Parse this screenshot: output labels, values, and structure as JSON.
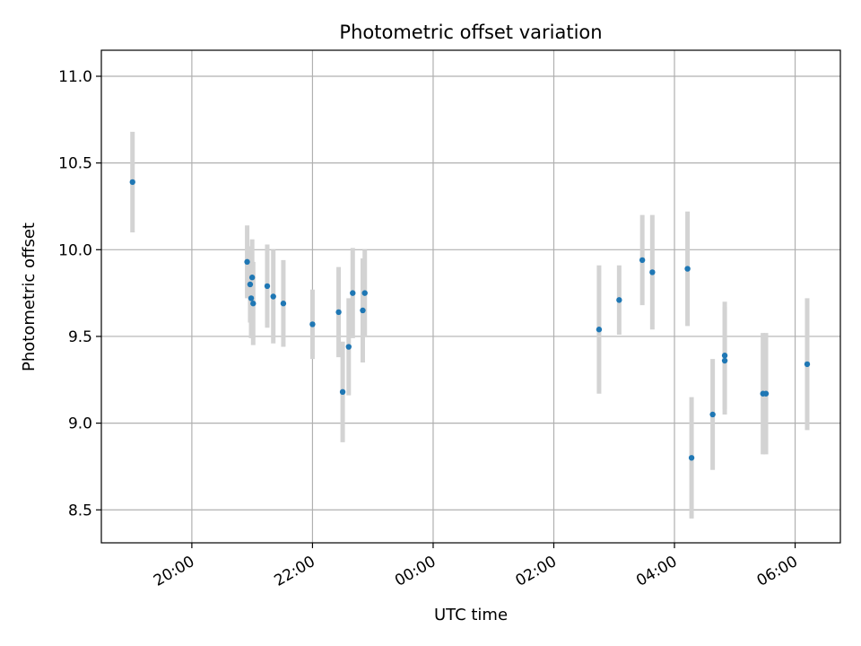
{
  "chart_data": {
    "type": "scatter",
    "title": "Photometric offset variation",
    "xlabel": "UTC time",
    "ylabel": "Photometric offset",
    "x_axis_type": "time",
    "xlim": [
      "18:30",
      "06:45"
    ],
    "ylim": [
      8.31,
      11.15
    ],
    "grid": true,
    "x_ticks": [
      "20:00",
      "22:00",
      "00:00",
      "02:00",
      "04:00",
      "06:00"
    ],
    "y_ticks": [
      "8.5",
      "9.0",
      "9.5",
      "10.0",
      "10.5",
      "11.0"
    ],
    "marker_color": "#1f77b4",
    "errorbar_color": "#d3d3d3",
    "points": [
      {
        "x": "19:01",
        "y": 10.39,
        "yerr": 0.29
      },
      {
        "x": "20:55",
        "y": 9.93,
        "yerr": 0.21
      },
      {
        "x": "20:58",
        "y": 9.8,
        "yerr": 0.22
      },
      {
        "x": "20:59",
        "y": 9.72,
        "yerr": 0.23
      },
      {
        "x": "21:00",
        "y": 9.84,
        "yerr": 0.22
      },
      {
        "x": "21:01",
        "y": 9.69,
        "yerr": 0.24
      },
      {
        "x": "21:15",
        "y": 9.79,
        "yerr": 0.24
      },
      {
        "x": "21:21",
        "y": 9.73,
        "yerr": 0.27
      },
      {
        "x": "21:31",
        "y": 9.69,
        "yerr": 0.25
      },
      {
        "x": "22:00",
        "y": 9.57,
        "yerr": 0.2
      },
      {
        "x": "22:26",
        "y": 9.64,
        "yerr": 0.26
      },
      {
        "x": "22:30",
        "y": 9.18,
        "yerr": 0.29
      },
      {
        "x": "22:36",
        "y": 9.44,
        "yerr": 0.28
      },
      {
        "x": "22:40",
        "y": 9.75,
        "yerr": 0.26
      },
      {
        "x": "22:50",
        "y": 9.65,
        "yerr": 0.3
      },
      {
        "x": "22:52",
        "y": 9.75,
        "yerr": 0.25
      },
      {
        "x": "02:45",
        "y": 9.54,
        "yerr": 0.37
      },
      {
        "x": "03:05",
        "y": 9.71,
        "yerr": 0.2
      },
      {
        "x": "03:28",
        "y": 9.94,
        "yerr": 0.26
      },
      {
        "x": "03:38",
        "y": 9.87,
        "yerr": 0.33
      },
      {
        "x": "04:13",
        "y": 9.89,
        "yerr": 0.33
      },
      {
        "x": "04:17",
        "y": 8.8,
        "yerr": 0.35
      },
      {
        "x": "04:38",
        "y": 9.05,
        "yerr": 0.32
      },
      {
        "x": "04:50",
        "y": 9.39,
        "yerr": 0.31
      },
      {
        "x": "04:50",
        "y": 9.36,
        "yerr": 0.31
      },
      {
        "x": "05:28",
        "y": 9.17,
        "yerr": 0.35
      },
      {
        "x": "05:31",
        "y": 9.17,
        "yerr": 0.35
      },
      {
        "x": "06:12",
        "y": 9.34,
        "yerr": 0.38
      }
    ]
  }
}
